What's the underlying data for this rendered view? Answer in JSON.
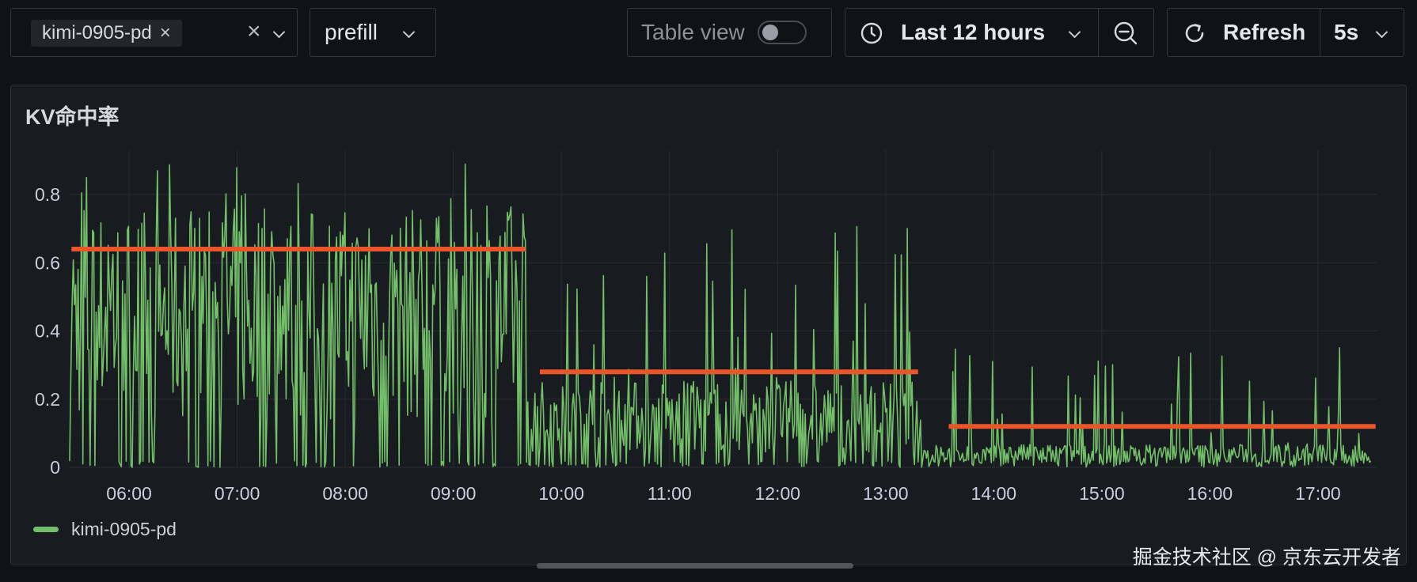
{
  "toolbar": {
    "instance_filter": {
      "chip_label": "kimi-0905-pd"
    },
    "stage_select": {
      "value": "prefill"
    },
    "table_view": {
      "label": "Table view",
      "enabled": false
    },
    "time_range": {
      "label": "Last 12 hours"
    },
    "refresh": {
      "label": "Refresh",
      "interval": "5s"
    }
  },
  "panel": {
    "title": "KV命中率",
    "legend": [
      {
        "name": "kimi-0905-pd",
        "color": "#73bf69"
      }
    ]
  },
  "watermark": "掘金技术社区 @ 京东云开发者",
  "colors": {
    "series": "#73bf69",
    "mean_overlay": "#e8562a",
    "grid": "#2a2c33",
    "text": "#ccccdc"
  },
  "icons": [
    "close-icon",
    "chevron-down-icon",
    "clock-icon",
    "zoom-out-icon",
    "refresh-icon"
  ],
  "chart_data": {
    "type": "line",
    "title": "KV命中率",
    "xlabel": "",
    "ylabel": "",
    "x_range_hours": [
      5.45,
      17.55
    ],
    "ylim": [
      0,
      0.93
    ],
    "y_ticks": [
      0,
      0.2,
      0.4,
      0.6,
      0.8
    ],
    "y_tick_labels": [
      "0",
      "0.2",
      "0.4",
      "0.6",
      "0.8"
    ],
    "x_ticks": [
      "06:00",
      "07:00",
      "08:00",
      "09:00",
      "10:00",
      "11:00",
      "12:00",
      "13:00",
      "14:00",
      "15:00",
      "16:00",
      "17:00"
    ],
    "grid": true,
    "legend_position": "bottom-left",
    "series": [
      {
        "name": "kimi-0905-pd",
        "color": "#73bf69",
        "segments": [
          {
            "from": "05:27",
            "to": "09:40",
            "typical": 0.45,
            "min": 0,
            "max": 0.89
          },
          {
            "from": "09:40",
            "to": "13:20",
            "typical": 0.15,
            "min": 0,
            "max": 0.71
          },
          {
            "from": "13:20",
            "to": "17:30",
            "typical": 0.04,
            "min": 0,
            "max": 0.36
          }
        ]
      }
    ],
    "mean_overlays": [
      {
        "from": "05:28",
        "to": "09:40",
        "value": 0.64
      },
      {
        "from": "09:48",
        "to": "13:18",
        "value": 0.28
      },
      {
        "from": "13:35",
        "to": "17:32",
        "value": 0.12
      }
    ]
  }
}
